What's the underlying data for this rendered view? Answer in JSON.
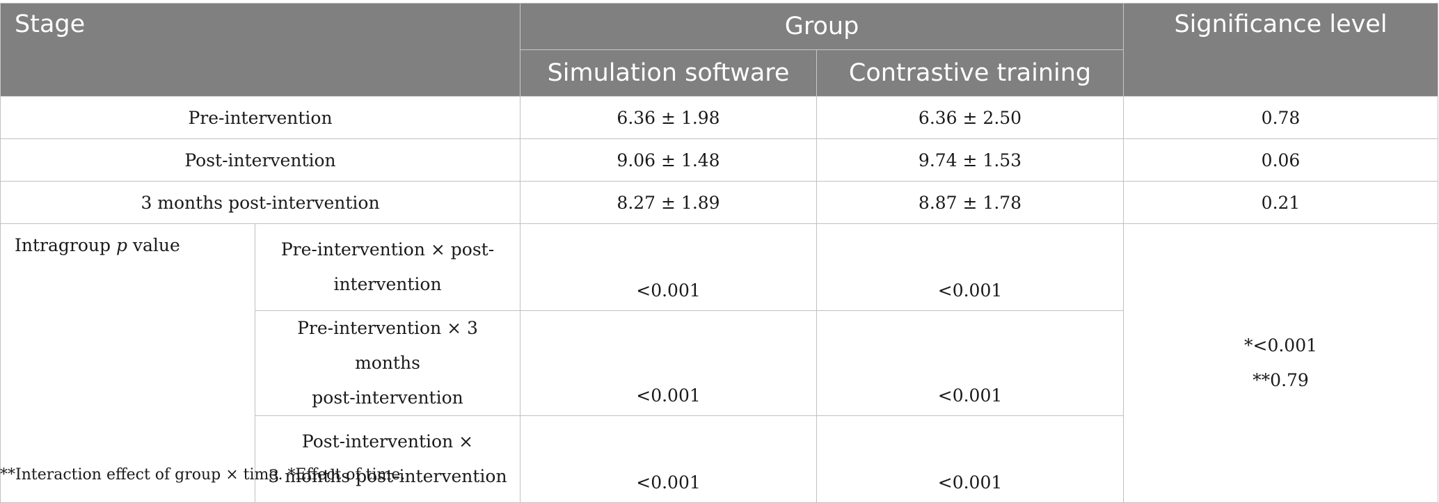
{
  "header": {
    "stage": "Stage",
    "group": "Group",
    "simulation_software": "Simulation software",
    "contrastive_training": "Contrastive training",
    "significance_level": "Significance level"
  },
  "rows": [
    {
      "stage": "Pre-intervention",
      "simulation": "6.36 ± 1.98",
      "contrastive": "6.36 ± 2.50",
      "significance": "0.78"
    },
    {
      "stage": "Post-intervention",
      "simulation": "9.06 ± 1.48",
      "contrastive": "9.74 ± 1.53",
      "significance": "0.06"
    },
    {
      "stage": "3 months post-intervention",
      "simulation": "8.27 ± 1.89",
      "contrastive": "8.87 ± 1.78",
      "significance": "0.21"
    }
  ],
  "intragroup": {
    "label_prefix": "Intragroup ",
    "label_italic": "p",
    "label_suffix": " value",
    "comparisons": [
      {
        "line1": "Pre-intervention × post-",
        "line2": "intervention",
        "simulation": "<0.001",
        "contrastive": "<0.001"
      },
      {
        "line1": "Pre-intervention × 3 months",
        "line2": "post-intervention",
        "simulation": "<0.001",
        "contrastive": "<0.001"
      },
      {
        "line1": "Post-intervention ×",
        "line2": "3 months post-intervention",
        "simulation": "<0.001",
        "contrastive": "<0.001"
      }
    ],
    "significance_line1": "*<0.001",
    "significance_line2": "**0.79"
  },
  "footnote": "**Interaction effect of group × time. *Effect of time."
}
